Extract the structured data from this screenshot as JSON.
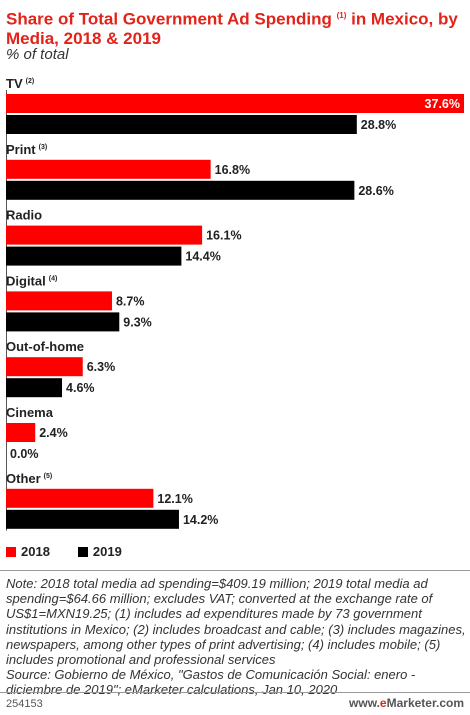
{
  "title": {
    "text": "Share of Total Government Ad Spending",
    "sup": "(1)",
    "text2": " in Mexico, by Media, 2018 & 2019"
  },
  "subtitle": "% of total",
  "colors": {
    "2018": "#ff0000",
    "2019": "#000000",
    "title": "#e2231a"
  },
  "chart_data": {
    "type": "bar",
    "orientation": "horizontal",
    "title": "Share of Total Government Ad Spending (1) in Mexico, by Media, 2018 & 2019",
    "subtitle": "% of total",
    "categories": [
      "TV",
      "Print",
      "Radio",
      "Digital",
      "Out-of-home",
      "Cinema",
      "Other"
    ],
    "category_notes": [
      "(2)",
      "(3)",
      "",
      "(4)",
      "",
      "",
      "(5)"
    ],
    "series": [
      {
        "name": "2018",
        "values": [
          37.6,
          16.8,
          16.1,
          8.7,
          6.3,
          2.4,
          12.1
        ]
      },
      {
        "name": "2019",
        "values": [
          28.8,
          28.6,
          14.4,
          9.3,
          4.6,
          0.0,
          14.2
        ]
      }
    ],
    "value_labels": {
      "2018": [
        "37.6%",
        "16.8%",
        "16.1%",
        "8.7%",
        "6.3%",
        "2.4%",
        "12.1%"
      ],
      "2019": [
        "28.8%",
        "28.6%",
        "14.4%",
        "9.3%",
        "4.6%",
        "0.0%",
        "14.2%"
      ]
    },
    "xlim": [
      0,
      37.6
    ],
    "grid": false,
    "legend": "bottom-left"
  },
  "legend": {
    "label_2018": "2018",
    "label_2019": "2019"
  },
  "note": "Note: 2018 total media ad spending=$409.19 million; 2019 total media ad spending=$64.66 million; excludes VAT; converted at the exchange rate of US$1=MXN19.25; (1) includes ad expenditures made by 73 government institutions in Mexico; (2) includes broadcast and cable; (3) includes magazines, newspapers, among other types of print advertising; (4) includes mobile; (5) includes promotional and professional services",
  "source": "Source: Gobierno de México, \"Gastos de Comunicación Social: enero - diciembre de 2019\"; eMarketer calculations, Jan 10, 2020",
  "footer": {
    "id": "254153",
    "logo_prefix": "www.",
    "logo_e": "e",
    "logo_rest": "Marketer",
    "logo_suffix": ".com"
  }
}
